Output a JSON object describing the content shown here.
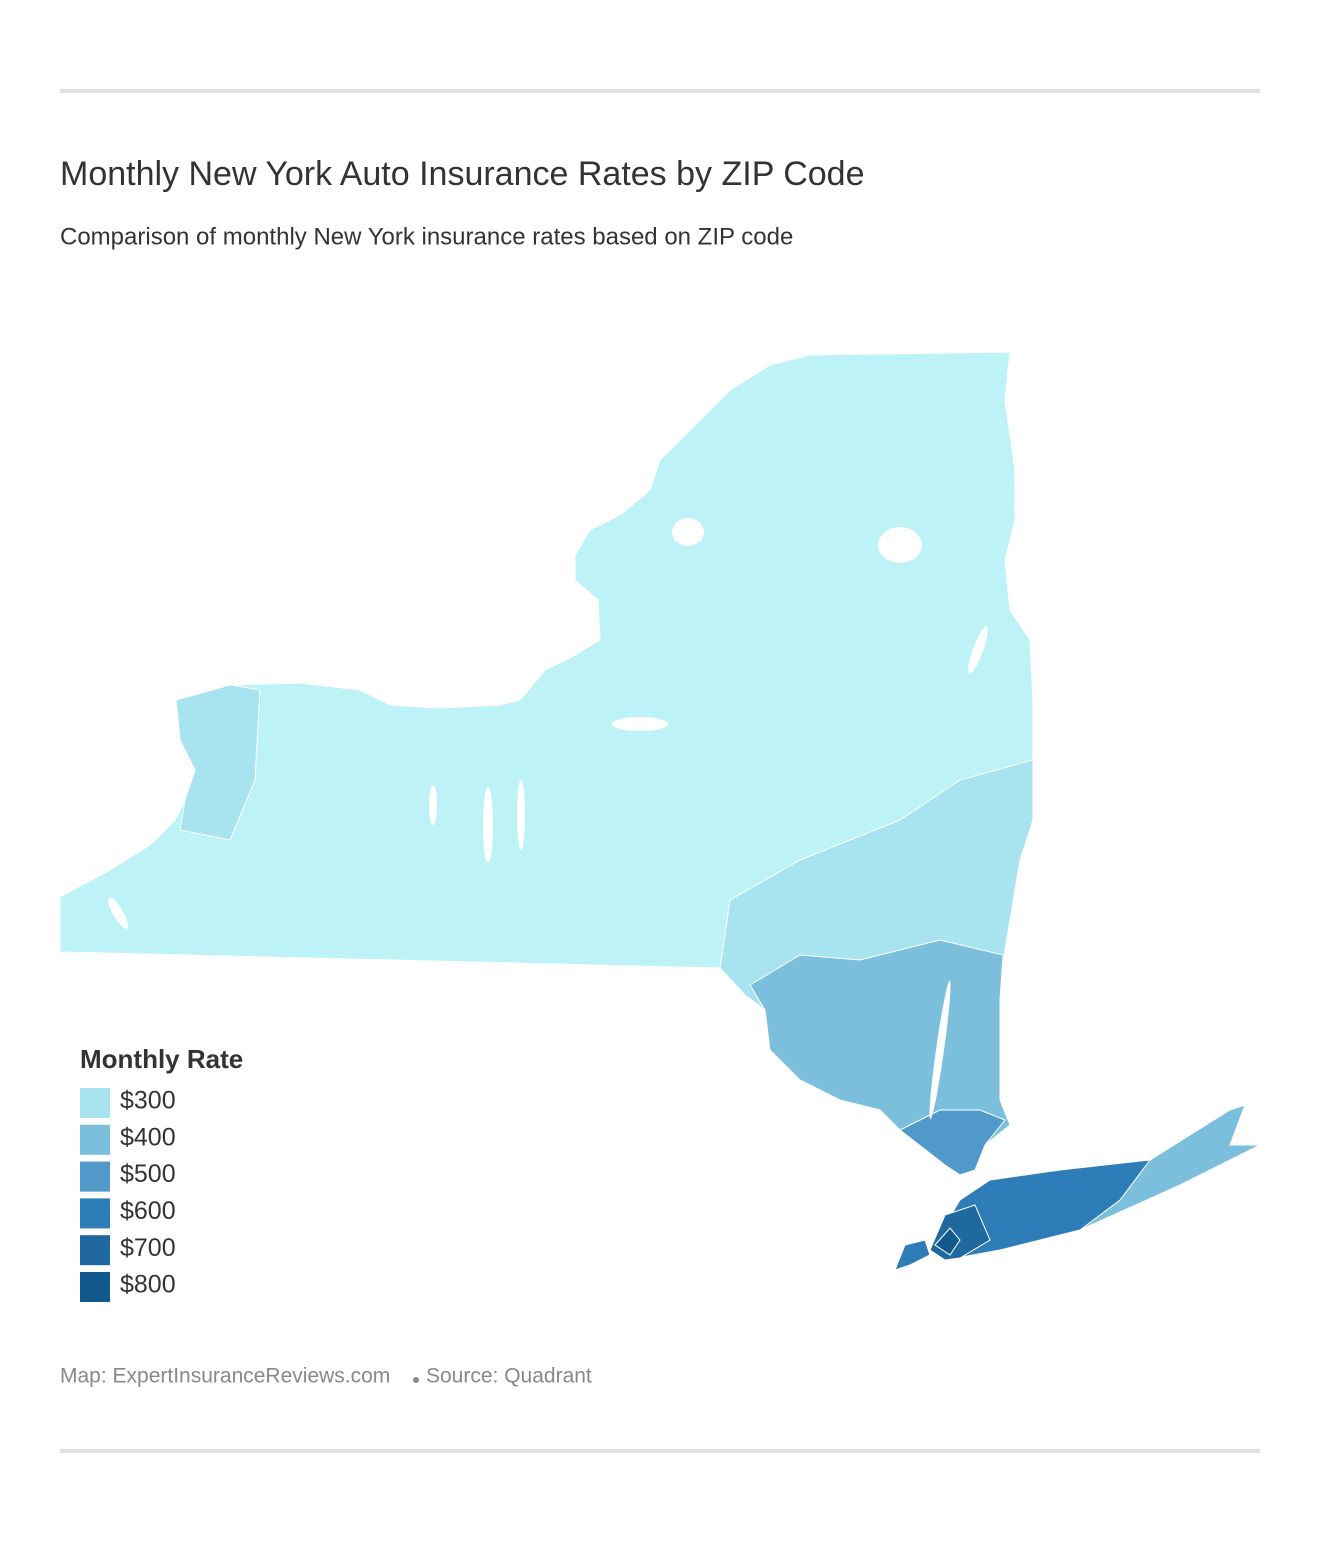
{
  "header": {
    "title": "Monthly New York Auto Insurance Rates by ZIP Code",
    "subtitle": "Comparison of monthly New York insurance rates based on ZIP code"
  },
  "legend": {
    "title": "Monthly Rate",
    "items": [
      {
        "label": "$300",
        "color": "#a8e4ef"
      },
      {
        "label": "$400",
        "color": "#7bbfdd"
      },
      {
        "label": "$500",
        "color": "#5199c9"
      },
      {
        "label": "$600",
        "color": "#2f7db8"
      },
      {
        "label": "$700",
        "color": "#1f68a0"
      },
      {
        "label": "$800",
        "color": "#125a8e"
      }
    ]
  },
  "footer": {
    "map_credit": "Map: ExpertInsuranceReviews.com",
    "source": "Source: Quadrant"
  }
}
